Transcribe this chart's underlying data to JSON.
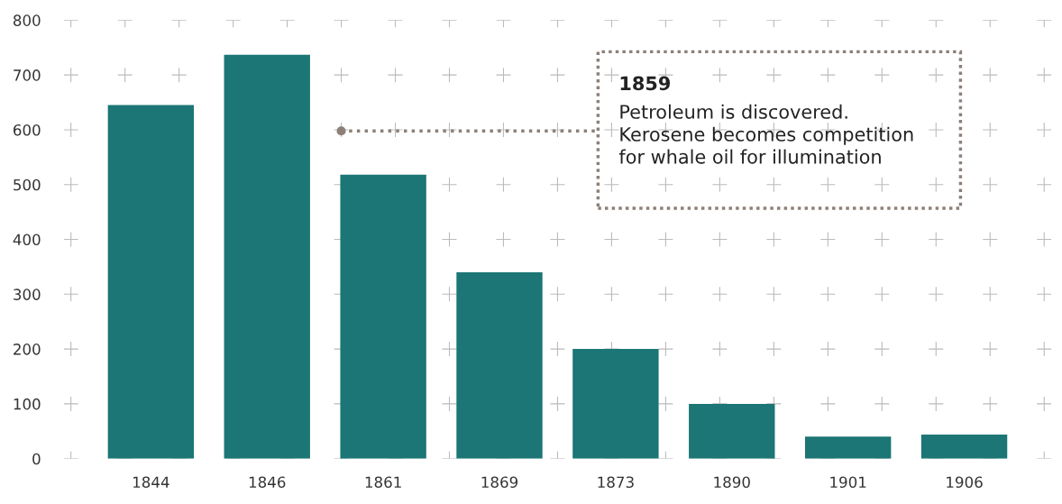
{
  "chart_data": {
    "type": "bar",
    "categories": [
      "1844",
      "1846",
      "1861",
      "1869",
      "1873",
      "1890",
      "1901",
      "1906"
    ],
    "values": [
      645,
      737,
      518,
      340,
      200,
      100,
      40,
      44
    ],
    "color": "#1b7675",
    "ylim": [
      0,
      800
    ],
    "yticks": [
      0,
      100,
      200,
      300,
      400,
      500,
      600,
      700,
      800
    ],
    "grid": true,
    "annotations": [
      "1859",
      "Petroleum is discovered.\nKerosene becomes competition\nfor whale oil for illumination"
    ]
  }
}
